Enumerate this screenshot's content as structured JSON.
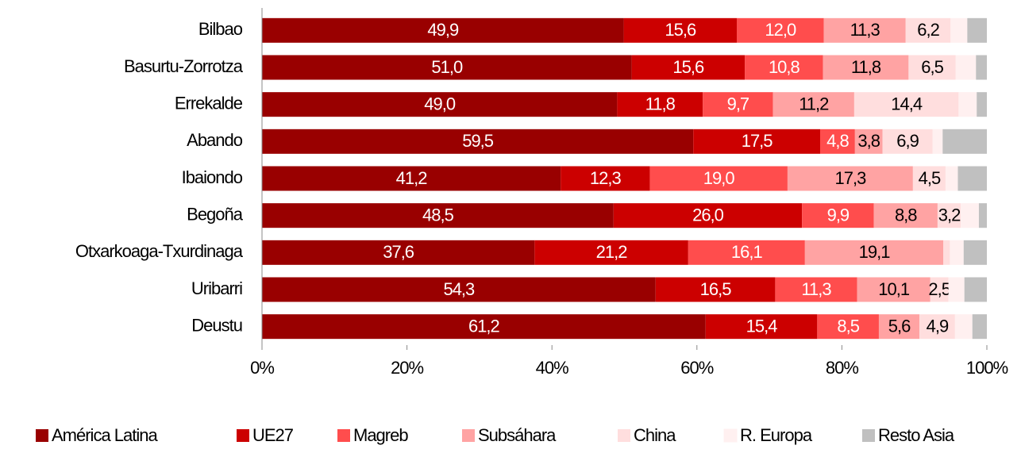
{
  "chart_data": {
    "type": "stacked-barh",
    "categories": [
      "Bilbao",
      "Basurtu-Zorrotza",
      "Errekalde",
      "Abando",
      "Ibaiondo",
      "Begoña",
      "Otxarkoaga-Txurdinaga",
      "Uribarri",
      "Deustu"
    ],
    "xlim": [
      0,
      100
    ],
    "xticks": [
      {
        "value": 0,
        "label": "0%"
      },
      {
        "value": 20,
        "label": "20%"
      },
      {
        "value": 40,
        "label": "40%"
      },
      {
        "value": 60,
        "label": "60%"
      },
      {
        "value": 80,
        "label": "80%"
      },
      {
        "value": 100,
        "label": "100%"
      }
    ],
    "series": [
      {
        "name": "América Latina",
        "color": "#990000",
        "text_color": "#ffffff",
        "values": [
          49.9,
          51.0,
          49.0,
          59.5,
          41.2,
          48.5,
          37.6,
          54.3,
          61.2
        ],
        "value_labels": [
          "49,9",
          "51,0",
          "49,0",
          "59,5",
          "41,2",
          "48,5",
          "37,6",
          "54,3",
          "61,2"
        ]
      },
      {
        "name": "UE27",
        "color": "#cc0000",
        "text_color": "#ffffff",
        "values": [
          15.6,
          15.6,
          11.8,
          17.5,
          12.3,
          26.0,
          21.2,
          16.5,
          15.4
        ],
        "value_labels": [
          "15,6",
          "15,6",
          "11,8",
          "17,5",
          "12,3",
          "26,0",
          "21,2",
          "16,5",
          "15,4"
        ]
      },
      {
        "name": "Magreb",
        "color": "#ff4d4d",
        "text_color": "#ffffff",
        "values": [
          12.0,
          10.8,
          9.7,
          4.8,
          19.0,
          9.9,
          16.1,
          11.3,
          8.5
        ],
        "value_labels": [
          "12,0",
          "10,8",
          "9,7",
          "4,8",
          "19,0",
          "9,9",
          "16,1",
          "11,3",
          "8,5"
        ]
      },
      {
        "name": "Subsáhara",
        "color": "#ffa3a3",
        "text_color": "#000000",
        "values": [
          11.3,
          11.8,
          11.2,
          3.8,
          17.3,
          8.8,
          19.1,
          10.1,
          5.6
        ],
        "value_labels": [
          "11,3",
          "11,8",
          "11,2",
          "3,8",
          "17,3",
          "8,8",
          "19,1",
          "10,1",
          "5,6"
        ]
      },
      {
        "name": "China",
        "color": "#ffdede",
        "text_color": "#000000",
        "values": [
          6.2,
          6.5,
          14.4,
          6.9,
          4.5,
          3.2,
          0.9,
          2.5,
          4.9
        ],
        "value_labels": [
          "6,2",
          "6,5",
          "14,4",
          "6,9",
          "4,5",
          "3,2",
          null,
          "2,5",
          "4,9"
        ]
      },
      {
        "name": "R. Europa",
        "color": "#fff0f0",
        "text_color": "#000000",
        "values": [
          2.3,
          2.8,
          2.5,
          1.4,
          1.7,
          2.5,
          1.9,
          2.2,
          2.4
        ],
        "value_labels": [
          null,
          null,
          null,
          null,
          null,
          null,
          null,
          null,
          null
        ]
      },
      {
        "name": "Resto Asia",
        "color": "#c0c0c0",
        "text_color": "#000000",
        "values": [
          2.7,
          1.5,
          1.4,
          6.1,
          4.0,
          1.1,
          3.2,
          3.1,
          2.0
        ],
        "value_labels": [
          null,
          null,
          null,
          null,
          null,
          null,
          null,
          null,
          null
        ]
      }
    ]
  }
}
